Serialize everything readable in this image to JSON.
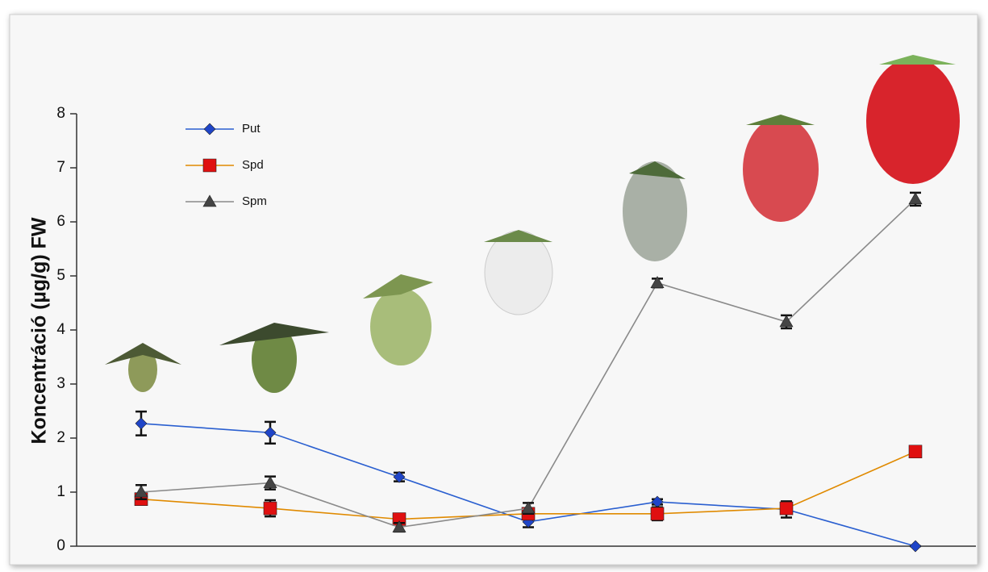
{
  "chart_data": {
    "type": "line",
    "y_label": "Koncentráció (µg/g) FW",
    "categories": [
      null,
      null,
      null,
      null,
      null,
      null,
      null
    ],
    "ylim": [
      0,
      8
    ],
    "yticks": [
      0,
      1,
      2,
      3,
      4,
      5,
      6,
      7,
      8
    ],
    "legend": "upper left",
    "series": [
      {
        "name": "Put",
        "color": "#2a5fd0",
        "marker": "diamond",
        "marker_color": "#1f45c8",
        "values": [
          2.27,
          2.1,
          1.28,
          0.45,
          0.82,
          0.68,
          0.0
        ],
        "errors": [
          0.22,
          0.2,
          0.08,
          0.1,
          0.05,
          0.15,
          0.0
        ]
      },
      {
        "name": "Spd",
        "color": "#e08a00",
        "marker": "square",
        "marker_color": "#e01010",
        "values": [
          0.87,
          0.7,
          0.5,
          0.6,
          0.6,
          0.7,
          1.75
        ],
        "errors": [
          0.05,
          0.15,
          0.08,
          0.1,
          0.12,
          0.08,
          0.05
        ]
      },
      {
        "name": "Spm",
        "color": "#8a8a8a",
        "marker": "triangle",
        "marker_color": "#444444",
        "values": [
          1.0,
          1.17,
          0.35,
          0.7,
          4.87,
          4.15,
          6.42
        ],
        "errors": [
          0.13,
          0.12,
          0.08,
          0.1,
          0.08,
          0.12,
          0.12
        ]
      }
    ]
  }
}
